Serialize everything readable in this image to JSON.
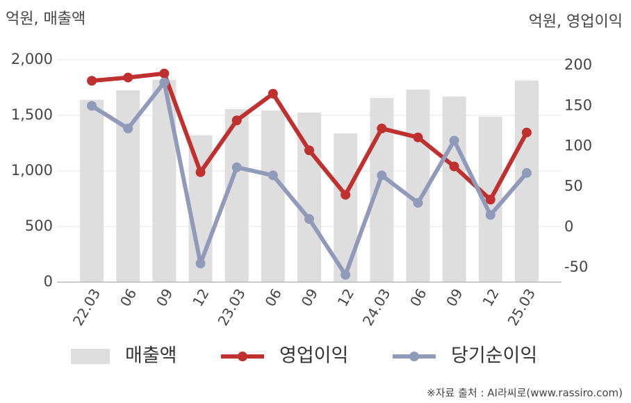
{
  "chart_data": {
    "type": "bar-line",
    "y_label": "억원, 매출액",
    "y2_label": "억원, 영업이익",
    "source": "※자료 출처 : AI라씨로(www.rassiro.com)",
    "categories": [
      "22.03",
      "06",
      "09",
      "12",
      "23.03",
      "06",
      "09",
      "12",
      "24.03",
      "06",
      "09",
      "12",
      "25.03"
    ],
    "series": [
      {
        "name": "매출액",
        "type": "bar",
        "color": "#dedede",
        "values": [
          1640,
          1725,
          1820,
          1320,
          1556,
          1544,
          1525,
          1338,
          1656,
          1731,
          1669,
          1488,
          1813
        ]
      },
      {
        "name": "영업이익",
        "type": "line",
        "axis": "y2",
        "color": "#c0302f",
        "values": [
          181,
          185,
          190,
          68,
          132,
          165,
          95,
          40,
          122,
          111,
          75,
          34,
          117
        ]
      },
      {
        "name": "당기순이익",
        "type": "line",
        "axis": "y2",
        "color": "#8f9bb8",
        "values": [
          150,
          122,
          179,
          -45,
          74,
          64,
          10,
          -59,
          64,
          30,
          107,
          15,
          67
        ]
      }
    ],
    "ylim": [
      0,
      2000
    ],
    "yticks": [
      {
        "value": 0,
        "label": "0"
      },
      {
        "value": 500,
        "label": "500"
      },
      {
        "value": 1000,
        "label": "1,000"
      },
      {
        "value": 1500,
        "label": "1,500"
      },
      {
        "value": 2000,
        "label": "2,000"
      }
    ],
    "y2lim": [
      -68,
      207
    ],
    "y2ticks": [
      -50,
      0,
      50,
      100,
      150,
      200
    ],
    "grid": true
  }
}
